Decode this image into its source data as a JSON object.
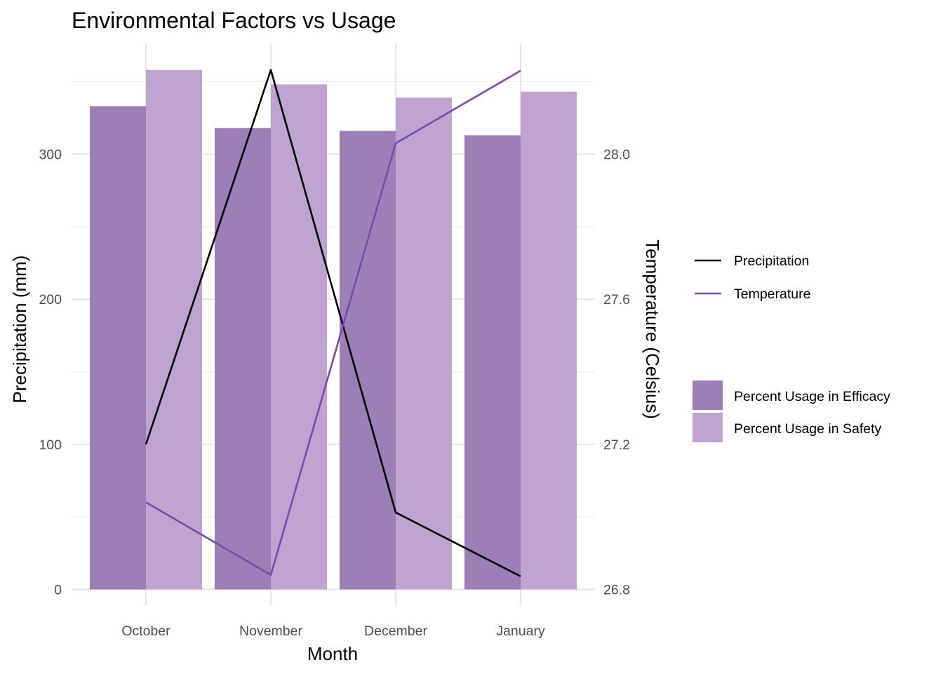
{
  "chart_data": {
    "type": "bar",
    "title": "Environmental Factors vs Usage",
    "xlabel": "Month",
    "ylabel": "Precipitation (mm)",
    "y2label": "Temperature (Celsius)",
    "categories": [
      "October",
      "November",
      "December",
      "January"
    ],
    "ylim": [
      0,
      357
    ],
    "yticks": [
      0,
      100,
      200,
      300
    ],
    "y2lim": [
      26.8,
      28.24
    ],
    "y2ticks": [
      "26.8",
      "27.2",
      "27.6",
      "28.0"
    ],
    "bar_series": [
      {
        "name": "Percent Usage in Efficacy",
        "color": "#9b7fb6",
        "values": [
          333,
          318,
          316,
          313
        ]
      },
      {
        "name": "Percent Usage in Safety",
        "color": "#bfa3d1",
        "values": [
          358,
          348,
          339,
          343
        ]
      }
    ],
    "line_series": [
      {
        "name": "Precipitation",
        "color": "#000000",
        "axis": "left",
        "values": [
          100,
          358,
          53,
          9
        ]
      },
      {
        "name": "Temperature",
        "color": "#7b4aa8",
        "axis": "right",
        "values": [
          27.04,
          26.84,
          28.03,
          28.23
        ]
      }
    ],
    "grid": true,
    "legend_position": "right"
  }
}
